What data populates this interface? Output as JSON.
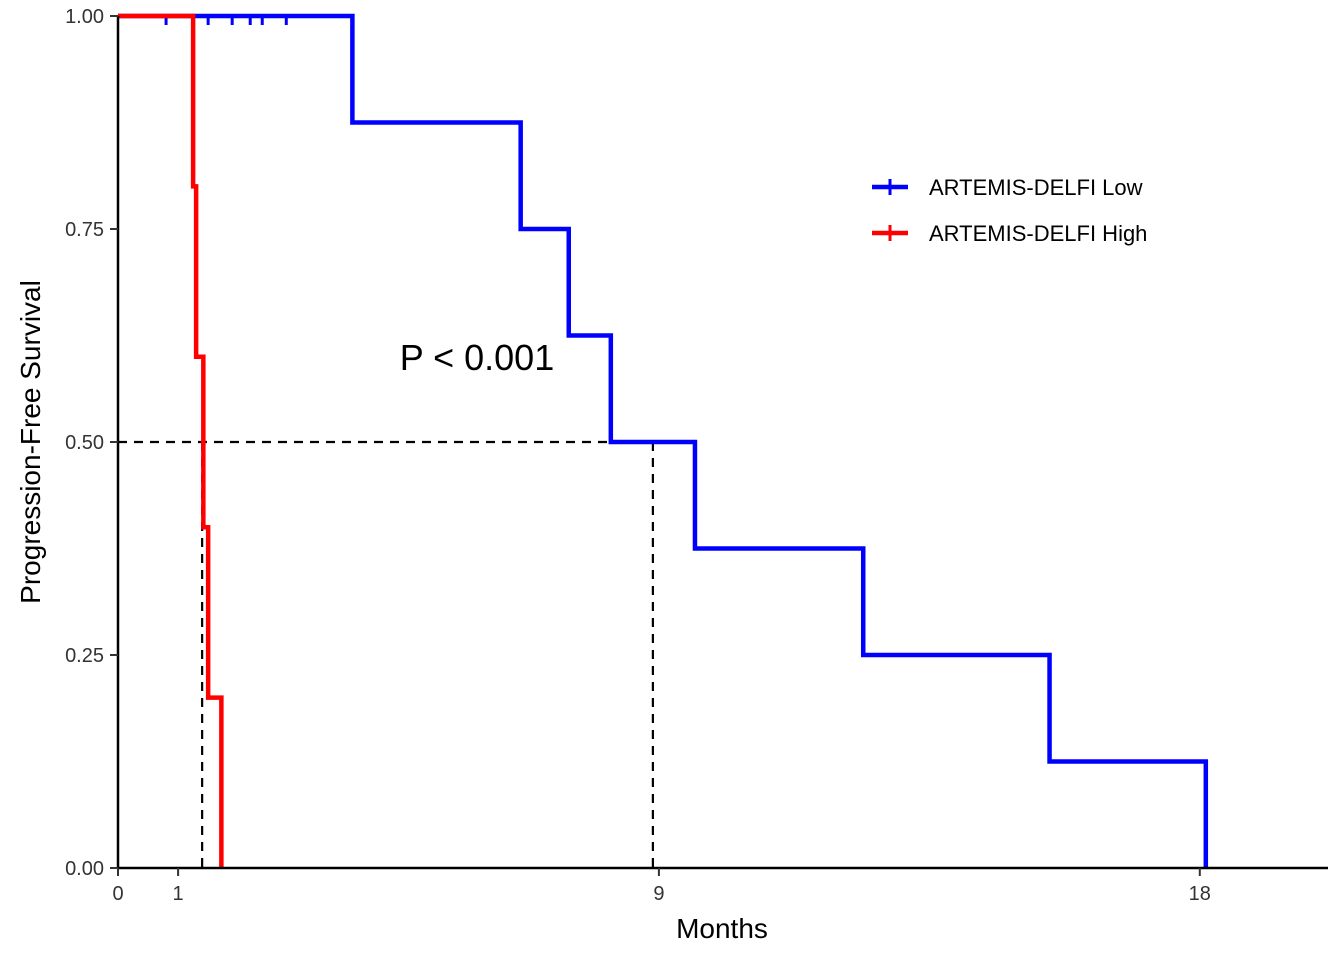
{
  "chart_data": {
    "type": "line",
    "subtype": "kaplan-meier step",
    "xlabel": "Months",
    "ylabel": "Progression-Free Survival",
    "xlim": [
      0,
      20.2
    ],
    "ylim": [
      0,
      1
    ],
    "x_ticks": [
      0,
      1,
      9,
      18
    ],
    "y_ticks": [
      0,
      0.25,
      0.5,
      0.75,
      1.0
    ],
    "y_tick_labels": [
      "0.00",
      "0.25",
      "0.50",
      "0.75",
      "1.00"
    ],
    "annotation": "P < 0.001",
    "grid": false,
    "legend_position": "top-right",
    "median_reference": {
      "y": 0.5,
      "x_values": [
        1.4,
        8.9
      ]
    },
    "series": [
      {
        "name": "ARTEMIS-DELFI Low",
        "color": "#0000FF",
        "steps": [
          {
            "x": 0,
            "y": 1.0
          },
          {
            "x": 3.9,
            "y": 0.875
          },
          {
            "x": 6.7,
            "y": 0.75
          },
          {
            "x": 7.5,
            "y": 0.625
          },
          {
            "x": 8.2,
            "y": 0.5
          },
          {
            "x": 9.6,
            "y": 0.375
          },
          {
            "x": 12.4,
            "y": 0.25
          },
          {
            "x": 15.5,
            "y": 0.125
          },
          {
            "x": 18.1,
            "y": 0.0
          }
        ],
        "censor_times": [
          0.8,
          1.5,
          1.9,
          2.2,
          2.4,
          2.8
        ]
      },
      {
        "name": "ARTEMIS-DELFI High",
        "color": "#FF0000",
        "steps": [
          {
            "x": 0,
            "y": 1.0
          },
          {
            "x": 1.25,
            "y": 0.8
          },
          {
            "x": 1.3,
            "y": 0.6
          },
          {
            "x": 1.42,
            "y": 0.4
          },
          {
            "x": 1.5,
            "y": 0.2
          },
          {
            "x": 1.72,
            "y": 0.0
          }
        ],
        "censor_times": []
      }
    ]
  }
}
